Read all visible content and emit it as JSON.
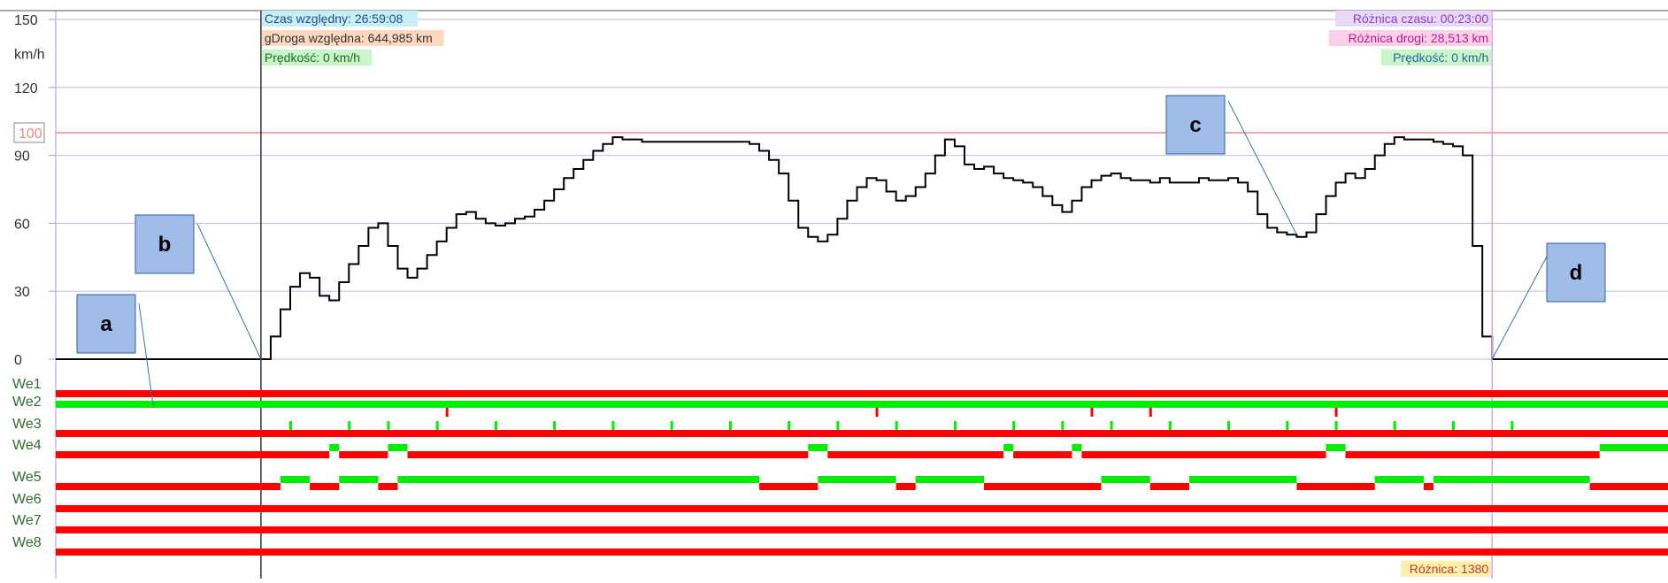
{
  "chart_data": {
    "type": "line",
    "y_unit_label": "km/h",
    "y_ticks": [
      0,
      30,
      60,
      90,
      120,
      150
    ],
    "ylim": [
      0,
      150
    ],
    "grid": true,
    "limit_line": {
      "value": 100,
      "label": "100",
      "color": "#e88a8a"
    },
    "speed_series": {
      "color": "#000000",
      "points": [
        [
          0,
          0
        ],
        [
          21,
          0
        ],
        [
          22,
          10
        ],
        [
          23,
          22
        ],
        [
          24,
          32
        ],
        [
          25,
          38
        ],
        [
          26,
          36
        ],
        [
          27,
          28
        ],
        [
          28,
          26
        ],
        [
          29,
          34
        ],
        [
          30,
          42
        ],
        [
          31,
          50
        ],
        [
          32,
          58
        ],
        [
          33,
          60
        ],
        [
          34,
          50
        ],
        [
          35,
          40
        ],
        [
          36,
          36
        ],
        [
          37,
          40
        ],
        [
          38,
          46
        ],
        [
          39,
          52
        ],
        [
          40,
          58
        ],
        [
          41,
          64
        ],
        [
          42,
          65
        ],
        [
          43,
          62
        ],
        [
          44,
          60
        ],
        [
          45,
          59
        ],
        [
          46,
          60
        ],
        [
          47,
          62
        ],
        [
          48,
          63
        ],
        [
          49,
          66
        ],
        [
          50,
          70
        ],
        [
          51,
          75
        ],
        [
          52,
          80
        ],
        [
          53,
          84
        ],
        [
          54,
          88
        ],
        [
          55,
          92
        ],
        [
          56,
          95
        ],
        [
          57,
          98
        ],
        [
          58,
          97
        ],
        [
          60,
          96
        ],
        [
          62,
          96
        ],
        [
          64,
          96
        ],
        [
          66,
          96
        ],
        [
          68,
          96
        ],
        [
          70,
          96
        ],
        [
          71,
          95
        ],
        [
          72,
          92
        ],
        [
          73,
          88
        ],
        [
          74,
          82
        ],
        [
          75,
          70
        ],
        [
          76,
          58
        ],
        [
          77,
          54
        ],
        [
          78,
          52
        ],
        [
          79,
          55
        ],
        [
          80,
          62
        ],
        [
          81,
          70
        ],
        [
          82,
          76
        ],
        [
          83,
          80
        ],
        [
          84,
          79
        ],
        [
          85,
          74
        ],
        [
          86,
          70
        ],
        [
          87,
          72
        ],
        [
          88,
          76
        ],
        [
          89,
          82
        ],
        [
          90,
          90
        ],
        [
          91,
          97
        ],
        [
          92,
          94
        ],
        [
          93,
          86
        ],
        [
          94,
          84
        ],
        [
          95,
          85
        ],
        [
          96,
          82
        ],
        [
          97,
          80
        ],
        [
          98,
          79
        ],
        [
          99,
          78
        ],
        [
          100,
          76
        ],
        [
          101,
          72
        ],
        [
          102,
          68
        ],
        [
          103,
          65
        ],
        [
          104,
          70
        ],
        [
          105,
          76
        ],
        [
          106,
          79
        ],
        [
          107,
          81
        ],
        [
          108,
          82
        ],
        [
          109,
          80
        ],
        [
          110,
          79
        ],
        [
          111,
          79
        ],
        [
          112,
          78
        ],
        [
          113,
          80
        ],
        [
          114,
          78
        ],
        [
          115,
          78
        ],
        [
          116,
          78
        ],
        [
          117,
          80
        ],
        [
          118,
          79
        ],
        [
          119,
          79
        ],
        [
          120,
          80
        ],
        [
          121,
          78
        ],
        [
          122,
          74
        ],
        [
          123,
          64
        ],
        [
          124,
          58
        ],
        [
          125,
          56
        ],
        [
          126,
          55
        ],
        [
          127,
          54
        ],
        [
          128,
          56
        ],
        [
          129,
          64
        ],
        [
          130,
          72
        ],
        [
          131,
          78
        ],
        [
          132,
          82
        ],
        [
          133,
          80
        ],
        [
          134,
          84
        ],
        [
          135,
          90
        ],
        [
          136,
          95
        ],
        [
          137,
          98
        ],
        [
          138,
          97
        ],
        [
          139,
          97
        ],
        [
          140,
          97
        ],
        [
          141,
          96
        ],
        [
          142,
          95
        ],
        [
          143,
          94
        ],
        [
          144,
          90
        ],
        [
          145,
          50
        ],
        [
          146,
          10
        ],
        [
          147,
          0
        ],
        [
          165,
          0
        ]
      ]
    },
    "cursor_left": {
      "title": "Czas względny: 26:59:08",
      "distance": "gDroga względna: 644,985 km",
      "speed": "Prędkość: 0 km/h"
    },
    "cursor_right": {
      "time_diff": "Różnica czasu: 00:23:00",
      "distance_diff": "Różnica drogi: 28,513 km",
      "speed": "Prędkość: 0 km/h",
      "count_diff": "Różnica: 1380"
    },
    "channels": [
      {
        "name": "We1",
        "segments": [
          [
            0,
            165,
            0
          ]
        ]
      },
      {
        "name": "We2",
        "segments": [
          [
            0,
            165,
            1
          ]
        ],
        "spikes": [
          40,
          84,
          106,
          112,
          131
        ]
      },
      {
        "name": "We3",
        "segments": [
          [
            0,
            165,
            0
          ]
        ],
        "pulses": [
          24,
          30,
          34,
          39,
          45,
          51,
          57,
          63,
          69,
          75,
          80,
          86,
          92,
          98,
          103,
          108,
          114,
          120,
          126,
          131,
          137,
          143,
          149
        ]
      },
      {
        "name": "We4",
        "segments": [
          [
            0,
            28,
            0
          ],
          [
            28,
            29,
            1
          ],
          [
            29,
            34,
            0
          ],
          [
            34,
            36,
            1
          ],
          [
            36,
            77,
            0
          ],
          [
            77,
            79,
            1
          ],
          [
            79,
            97,
            0
          ],
          [
            97,
            98,
            1
          ],
          [
            98,
            104,
            0
          ],
          [
            104,
            105,
            1
          ],
          [
            105,
            130,
            0
          ],
          [
            130,
            132,
            1
          ],
          [
            132,
            158,
            0
          ],
          [
            158,
            165,
            1
          ]
        ]
      },
      {
        "name": "We5",
        "segments": [
          [
            0,
            23,
            0
          ],
          [
            23,
            26,
            1
          ],
          [
            26,
            29,
            0
          ],
          [
            29,
            33,
            1
          ],
          [
            33,
            35,
            0
          ],
          [
            35,
            72,
            1
          ],
          [
            72,
            78,
            0
          ],
          [
            78,
            86,
            1
          ],
          [
            86,
            88,
            0
          ],
          [
            88,
            95,
            1
          ],
          [
            95,
            107,
            0
          ],
          [
            107,
            112,
            1
          ],
          [
            112,
            116,
            0
          ],
          [
            116,
            127,
            1
          ],
          [
            127,
            135,
            0
          ],
          [
            135,
            140,
            1
          ],
          [
            140,
            141,
            0
          ],
          [
            141,
            157,
            1
          ],
          [
            157,
            165,
            0
          ]
        ]
      },
      {
        "name": "We6",
        "segments": [
          [
            0,
            165,
            0
          ]
        ]
      },
      {
        "name": "We7",
        "segments": [
          [
            0,
            165,
            0
          ]
        ]
      },
      {
        "name": "We8",
        "segments": [
          [
            0,
            165,
            0
          ]
        ]
      }
    ],
    "channel_colors": {
      "off": "#ff0000",
      "on": "#00ee00"
    },
    "callouts": [
      {
        "label": "a",
        "target_channel": "We2",
        "at": 10
      },
      {
        "label": "b",
        "target_speed": [
          21,
          0
        ]
      },
      {
        "label": "c",
        "target_speed": [
          127,
          55
        ]
      },
      {
        "label": "d",
        "target_speed": [
          147,
          0
        ]
      }
    ]
  }
}
